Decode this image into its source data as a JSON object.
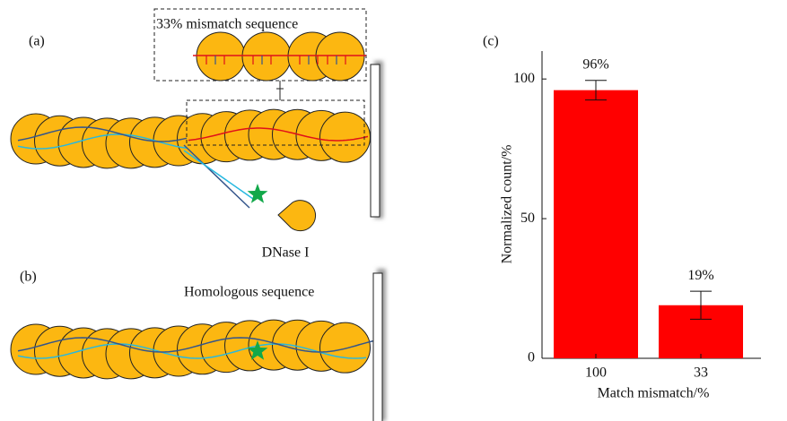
{
  "panels": [
    "(a)",
    "(b)"
  ],
  "diagram": {
    "inset_label": "33% mismatch sequence",
    "enzyme_label": "DNase I",
    "homologous_label": "Homologous sequence"
  },
  "chart_data": {
    "type": "bar",
    "panel_label": "(c)",
    "x_label": "Match mismatch/%",
    "y_label": "Normalized count/%",
    "categories": [
      "100",
      "33"
    ],
    "values": [
      96,
      19
    ],
    "value_labels": [
      "96%",
      "19%"
    ],
    "errors": [
      3.5,
      5
    ],
    "color": "#ff0000",
    "ylim": [
      0,
      110
    ],
    "yticks": [
      0,
      50,
      100
    ]
  }
}
